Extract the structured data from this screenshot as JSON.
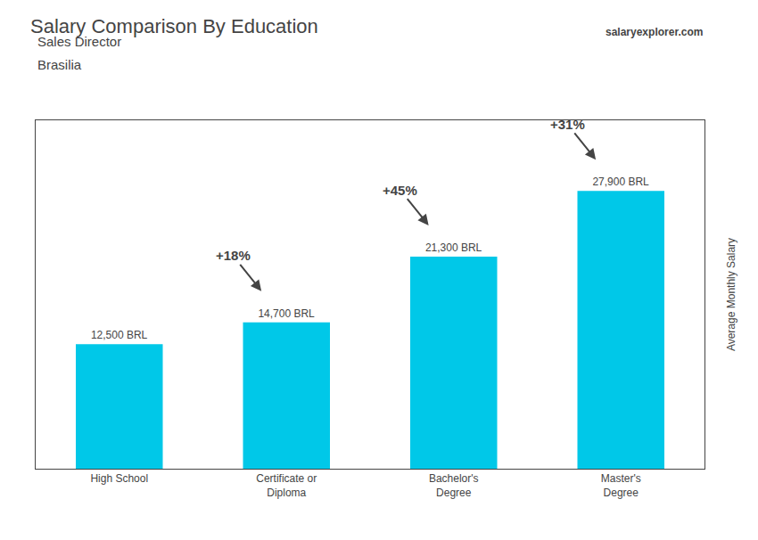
{
  "chart_data": {
    "type": "bar",
    "title": "Salary Comparison By Education",
    "subtitle": [
      "Sales Director",
      "Brasilia"
    ],
    "ylabel": "Average Monthly Salary",
    "categories": [
      "High School",
      "Certificate or\nDiploma",
      "Bachelor's\nDegree",
      "Master's\nDegree"
    ],
    "values": [
      12500,
      14700,
      21300,
      27900
    ],
    "value_labels": [
      "12,500 BRL",
      "14,700 BRL",
      "21,300 BRL",
      "27,900 BRL"
    ],
    "data_labels": true,
    "color": "#00C8E8",
    "ylim": [
      0,
      35000
    ],
    "tick_labels": "x",
    "grid": false,
    "annotations": [
      "+18%",
      "+45%",
      "+31%",
      "salaryexplorer.com"
    ]
  }
}
